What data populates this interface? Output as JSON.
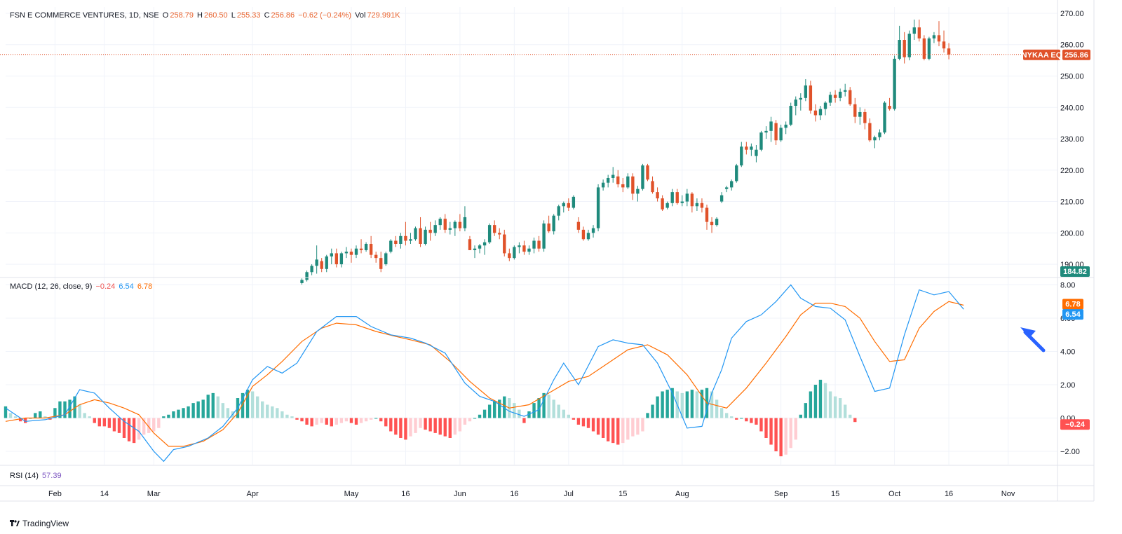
{
  "header": {
    "symbol": "FSN E COMMERCE VENTURES, 1D, NSE",
    "o_label": "O",
    "o": "258.79",
    "h_label": "H",
    "h": "260.50",
    "l_label": "L",
    "l": "255.33",
    "c_label": "C",
    "c": "256.86",
    "change": "−0.62 (−0.24%)",
    "vol_label": "Vol",
    "vol": "729.991K"
  },
  "macd_legend": {
    "label": "MACD (12, 26, close, 9)",
    "hist": "−0.24",
    "macd": "6.54",
    "signal": "6.78"
  },
  "rsi_legend": {
    "label": "RSI (14)",
    "value": "57.39"
  },
  "price_tag": {
    "ticker": "NYKAA EQ",
    "value": "256.86"
  },
  "low_tag": "184.82",
  "footer": {
    "brand": "TradingView"
  },
  "colors": {
    "up": "#26a69a",
    "down": "#ef5350",
    "up_dark": "#1f8a7c",
    "down_dark": "#e0522a",
    "macd": "#2196f3",
    "signal": "#ff6d00",
    "hist_up_strong": "#26a69a",
    "hist_up_weak": "#b2dfdb",
    "hist_dn_strong": "#ff5252",
    "hist_dn_weak": "#ffcdd2",
    "arrow": "#2962ff",
    "rsi": "#7e57c2"
  },
  "chart_data": {
    "type": "candlestick",
    "price_axis": {
      "ylim": [
        186,
        272
      ],
      "ticks": [
        190,
        200,
        210,
        220,
        230,
        240,
        250,
        260,
        270
      ],
      "tick_labels": [
        "190.00",
        "200.00",
        "210.00",
        "220.00",
        "230.00",
        "240.00",
        "250.00",
        "260.00",
        "270.00"
      ]
    },
    "macd_axis": {
      "ylim": [
        -2.8,
        8.4
      ],
      "ticks": [
        -2,
        0,
        2,
        4,
        6,
        8
      ],
      "tick_labels": [
        "−2.00",
        "0.00",
        "2.00",
        "4.00",
        "6.00",
        "8.00"
      ]
    },
    "x_axis": {
      "ticks": [
        {
          "label": "Feb",
          "day": 0
        },
        {
          "label": "14",
          "day": 10
        },
        {
          "label": "Mar",
          "day": 20
        },
        {
          "label": "Apr",
          "day": 40
        },
        {
          "label": "May",
          "day": 60
        },
        {
          "label": "16",
          "day": 71
        },
        {
          "label": "Jun",
          "day": 82
        },
        {
          "label": "16",
          "day": 93
        },
        {
          "label": "Jul",
          "day": 104
        },
        {
          "label": "15",
          "day": 115
        },
        {
          "label": "Aug",
          "day": 127
        },
        {
          "label": "Sep",
          "day": 147
        },
        {
          "label": "15",
          "day": 158
        },
        {
          "label": "Oct",
          "day": 170
        },
        {
          "label": "16",
          "day": 181
        },
        {
          "label": "Nov",
          "day": 193
        }
      ],
      "day_range": [
        -10,
        203
      ]
    },
    "candles_start_day": 50,
    "candles": [
      [
        184,
        185.5,
        183.5,
        185
      ],
      [
        185,
        188,
        184.5,
        187.5
      ],
      [
        187.5,
        190,
        186.5,
        189.5
      ],
      [
        189.5,
        196,
        187,
        191.5
      ],
      [
        191,
        192,
        187.5,
        188.5
      ],
      [
        188.5,
        193,
        187.5,
        192.5
      ],
      [
        192.5,
        195,
        190,
        193.5
      ],
      [
        193.5,
        195,
        189,
        190
      ],
      [
        190,
        194,
        189,
        193.5
      ],
      [
        193.5,
        195.5,
        192,
        194
      ],
      [
        194,
        195,
        190.5,
        193
      ],
      [
        193,
        196,
        192,
        195
      ],
      [
        195,
        198,
        193.5,
        194.5
      ],
      [
        194.5,
        197,
        194,
        196.5
      ],
      [
        196.5,
        199,
        192,
        193
      ],
      [
        193,
        194,
        190.5,
        192
      ],
      [
        192,
        194,
        187.5,
        188.5
      ],
      [
        190,
        194,
        189.5,
        193.5
      ],
      [
        194,
        198,
        193.5,
        197.5
      ],
      [
        197.5,
        199,
        195.5,
        196.5
      ],
      [
        196.5,
        200,
        195,
        199
      ],
      [
        199,
        203.5,
        196,
        197.5
      ],
      [
        197.5,
        200,
        196.5,
        198
      ],
      [
        198,
        202,
        197.5,
        201.5
      ],
      [
        201.5,
        205,
        195.5,
        196.5
      ],
      [
        196.5,
        202,
        196,
        201
      ],
      [
        201,
        203.5,
        197.5,
        200
      ],
      [
        200,
        204,
        199,
        202.5
      ],
      [
        202.5,
        205,
        201,
        204.5
      ],
      [
        204.5,
        206,
        200,
        201
      ],
      [
        201,
        203.5,
        199.5,
        201.5
      ],
      [
        201.5,
        204,
        199,
        203.5
      ],
      [
        203.5,
        206,
        200.5,
        201.5
      ],
      [
        201.5,
        208.5,
        200.5,
        205
      ],
      [
        198,
        199,
        194.5,
        194.5
      ],
      [
        194.5,
        196,
        192,
        195
      ],
      [
        195,
        196.5,
        193.5,
        196
      ],
      [
        196,
        198,
        193,
        197
      ],
      [
        197,
        203,
        196.5,
        202.5
      ],
      [
        202.5,
        204,
        199,
        200
      ],
      [
        200,
        201.5,
        198,
        199.5
      ],
      [
        199.5,
        201,
        192.5,
        193.5
      ],
      [
        193.5,
        195,
        191,
        192
      ],
      [
        192,
        196,
        191.5,
        195.5
      ],
      [
        195.5,
        197,
        193.5,
        196
      ],
      [
        196,
        197.5,
        193,
        194
      ],
      [
        194,
        196,
        193,
        195
      ],
      [
        195,
        198.5,
        193.5,
        197.5
      ],
      [
        197.5,
        199,
        194,
        195
      ],
      [
        195,
        204,
        194,
        203
      ],
      [
        203,
        205.5,
        200,
        200.5
      ],
      [
        200.5,
        206,
        199.5,
        205.5
      ],
      [
        205.5,
        209,
        204,
        208.5
      ],
      [
        208.5,
        210,
        206.5,
        209.5
      ],
      [
        209.5,
        211,
        207,
        208
      ],
      [
        208,
        212,
        207.5,
        211.5
      ],
      [
        203.5,
        205,
        200,
        201
      ],
      [
        201,
        202,
        197.5,
        198
      ],
      [
        198,
        201,
        197.5,
        200
      ],
      [
        200,
        202.5,
        198.5,
        201.5
      ],
      [
        201.5,
        215.5,
        200.5,
        214.5
      ],
      [
        214.5,
        217,
        213.5,
        216
      ],
      [
        216,
        218.5,
        214.5,
        217.5
      ],
      [
        217.5,
        221,
        216,
        218.5
      ],
      [
        218,
        220,
        214.5,
        215.5
      ],
      [
        215.5,
        217.5,
        213,
        214.5
      ],
      [
        214.5,
        219,
        214,
        218
      ],
      [
        218,
        219,
        210.5,
        212.5
      ],
      [
        212.5,
        215,
        210,
        214
      ],
      [
        214,
        222,
        213.5,
        221.5
      ],
      [
        221.5,
        222,
        216.5,
        217
      ],
      [
        216.5,
        218,
        212.5,
        213
      ],
      [
        213,
        214.5,
        210,
        211
      ],
      [
        211,
        212,
        207,
        207.5
      ],
      [
        208,
        210,
        207.5,
        209.5
      ],
      [
        209.5,
        214,
        208.5,
        213
      ],
      [
        213,
        214,
        209,
        209.5
      ],
      [
        209.5,
        212,
        208.5,
        210
      ],
      [
        210,
        214,
        208.5,
        212.5
      ],
      [
        212.5,
        213,
        206.5,
        208.5
      ],
      [
        208.5,
        211,
        207,
        209.5
      ],
      [
        209.5,
        211,
        206.5,
        208
      ],
      [
        208,
        209,
        201,
        203.5
      ],
      [
        203.5,
        205,
        200,
        202.5
      ],
      [
        202.5,
        205,
        202,
        204.5
      ],
      [
        210,
        213,
        209.5,
        212
      ],
      [
        214,
        215,
        213,
        214.5
      ],
      [
        214.5,
        217,
        213.5,
        216.5
      ],
      [
        216.5,
        222,
        216,
        221.5
      ],
      [
        221.5,
        229,
        221,
        227.5
      ],
      [
        227.5,
        229,
        225,
        226.5
      ],
      [
        226.5,
        228.5,
        224.5,
        227.5
      ],
      [
        224.5,
        228,
        222.5,
        226.5
      ],
      [
        226.5,
        232.5,
        226,
        232
      ],
      [
        232,
        234,
        230,
        232.5
      ],
      [
        232.5,
        237,
        229,
        235.5
      ],
      [
        235,
        236,
        228,
        229.5
      ],
      [
        229.5,
        234.5,
        229,
        233.5
      ],
      [
        233.5,
        235.5,
        231.5,
        234.5
      ],
      [
        234.5,
        241.5,
        234,
        240.5
      ],
      [
        240.5,
        243.5,
        237.5,
        242.5
      ],
      [
        242.5,
        244.5,
        239,
        243
      ],
      [
        243,
        249,
        242,
        247
      ],
      [
        247,
        248.5,
        238,
        239
      ],
      [
        239,
        241,
        235.5,
        237.5
      ],
      [
        237.5,
        240.5,
        236,
        239.5
      ],
      [
        239.5,
        242,
        237.5,
        241.5
      ],
      [
        241.5,
        245,
        240.5,
        244
      ],
      [
        244,
        245.5,
        241.5,
        243
      ],
      [
        243,
        246,
        242,
        245
      ],
      [
        245,
        247.5,
        243.5,
        245.5
      ],
      [
        245.5,
        246.5,
        240.5,
        241
      ],
      [
        241,
        243,
        235,
        237
      ],
      [
        237,
        240,
        234.5,
        238.5
      ],
      [
        238.5,
        239.5,
        233,
        235
      ],
      [
        235,
        236.5,
        229,
        229.5
      ],
      [
        229.5,
        231,
        227,
        230.5
      ],
      [
        230.5,
        233,
        229.5,
        232
      ],
      [
        232,
        242,
        231.5,
        241.5
      ],
      [
        240.5,
        243,
        239,
        239.5
      ],
      [
        239.5,
        256.5,
        239,
        255.5
      ],
      [
        255.5,
        266,
        255,
        261.5
      ],
      [
        261.5,
        264,
        254,
        256
      ],
      [
        256,
        264.5,
        255,
        263.5
      ],
      [
        263.5,
        268,
        261.5,
        265.5
      ],
      [
        265.5,
        268,
        261,
        262
      ],
      [
        262,
        263,
        255,
        255.5
      ],
      [
        255.5,
        262.5,
        255,
        262
      ],
      [
        262,
        264,
        260.5,
        263
      ],
      [
        263,
        267.5,
        259.5,
        261
      ],
      [
        261,
        264.5,
        257.5,
        258.8
      ],
      [
        258.79,
        260.5,
        255.33,
        256.86
      ]
    ],
    "series": [
      {
        "name": "MACD",
        "x_days": [
          -10,
          -6,
          -2,
          2,
          5,
          8,
          11,
          14,
          17,
          20,
          22,
          24,
          27,
          31,
          34,
          37,
          40,
          43,
          46,
          49,
          53,
          57,
          61,
          64,
          68,
          72,
          75,
          79,
          83,
          86,
          89,
          92,
          95,
          98,
          101,
          103,
          106,
          110,
          113,
          116,
          119,
          122,
          125,
          128,
          131,
          133,
          135,
          137,
          140,
          143,
          146,
          149,
          151,
          154,
          157,
          160,
          163,
          166,
          169,
          172,
          175,
          178,
          181,
          184
        ],
        "values": [
          0.6,
          -0.2,
          -0.1,
          0.2,
          1.7,
          1.5,
          0.6,
          -0.2,
          -0.8,
          -2.0,
          -2.6,
          -1.9,
          -1.7,
          -1.2,
          -0.5,
          0.6,
          2.3,
          3.1,
          2.7,
          3.3,
          5.2,
          6.1,
          6.1,
          5.5,
          5.0,
          4.8,
          4.5,
          3.9,
          2.1,
          1.3,
          1.0,
          0.4,
          0.1,
          0.5,
          2.3,
          3.3,
          2.0,
          4.3,
          4.7,
          4.5,
          4.4,
          3.3,
          1.5,
          -0.6,
          -0.5,
          1.5,
          2.9,
          4.8,
          5.8,
          6.2,
          7.0,
          8.0,
          7.2,
          6.7,
          6.6,
          5.9,
          3.7,
          1.6,
          1.8,
          5.0,
          7.7,
          7.4,
          7.6,
          6.54
        ]
      },
      {
        "name": "Signal",
        "x_days": [
          -10,
          -6,
          -2,
          2,
          5,
          8,
          11,
          14,
          17,
          20,
          23,
          26,
          30,
          34,
          37,
          40,
          43,
          46,
          50,
          54,
          57,
          61,
          65,
          69,
          72,
          76,
          80,
          84,
          88,
          92,
          96,
          100,
          104,
          108,
          112,
          116,
          120,
          124,
          128,
          132,
          136,
          140,
          144,
          148,
          151,
          154,
          157,
          160,
          163,
          166,
          169,
          172,
          175,
          178,
          181,
          184
        ],
        "values": [
          -0.2,
          0.0,
          0.0,
          0.2,
          0.8,
          1.1,
          0.9,
          0.6,
          0.2,
          -0.9,
          -1.7,
          -1.7,
          -1.4,
          -0.7,
          0.3,
          1.9,
          2.6,
          3.4,
          4.6,
          5.4,
          5.7,
          5.6,
          5.2,
          4.9,
          4.7,
          4.4,
          3.4,
          2.2,
          1.2,
          0.6,
          0.8,
          1.5,
          2.2,
          2.5,
          3.3,
          4.1,
          4.4,
          3.8,
          2.6,
          0.9,
          0.6,
          1.8,
          3.3,
          4.9,
          6.2,
          6.9,
          6.9,
          6.7,
          6.0,
          4.6,
          3.4,
          3.5,
          5.4,
          6.4,
          7.0,
          6.78
        ]
      },
      {
        "name": "Histogram",
        "x_days_start": -10,
        "values": [
          0.7,
          0.3,
          0.1,
          -0.2,
          -0.3,
          0.0,
          0.3,
          0.4,
          0.1,
          -0.1,
          0.6,
          1.0,
          1.0,
          1.1,
          1.3,
          0.8,
          0.3,
          0.1,
          -0.3,
          -0.5,
          -0.5,
          -0.6,
          -0.8,
          -0.9,
          -1.2,
          -1.4,
          -1.5,
          -1.3,
          -1.0,
          -0.9,
          -0.8,
          -0.6,
          0.1,
          0.2,
          0.4,
          0.5,
          0.6,
          0.7,
          0.9,
          1.0,
          1.1,
          1.4,
          1.5,
          1.3,
          0.9,
          0.6,
          0.4,
          1.2,
          1.5,
          1.7,
          1.6,
          1.3,
          1.0,
          0.8,
          0.7,
          0.6,
          0.4,
          0.2,
          0.1,
          -0.1,
          -0.2,
          -0.4,
          -0.5,
          -0.4,
          -0.3,
          -0.4,
          -0.5,
          -0.4,
          -0.3,
          -0.2,
          -0.3,
          -0.4,
          -0.3,
          -0.2,
          -0.1,
          0.0,
          -0.2,
          -0.5,
          -0.8,
          -1.0,
          -1.2,
          -1.3,
          -1.1,
          -0.9,
          -0.6,
          -0.7,
          -0.8,
          -0.9,
          -1.0,
          -1.1,
          -1.2,
          -1.0,
          -0.8,
          -0.4,
          -0.2,
          0.0,
          0.2,
          0.5,
          0.8,
          1.0,
          1.1,
          1.3,
          1.2,
          0.9,
          0.5,
          -0.3,
          0.4,
          0.9,
          1.2,
          1.5,
          1.4,
          1.1,
          0.8,
          0.5,
          0.2,
          -0.1,
          -0.4,
          -0.5,
          -0.6,
          -0.8,
          -1.0,
          -1.2,
          -1.4,
          -1.5,
          -1.6,
          -1.5,
          -1.3,
          -1.1,
          -1.0,
          -0.8,
          0.3,
          0.8,
          1.3,
          1.6,
          1.7,
          1.8,
          1.6,
          1.5,
          1.6,
          1.7,
          1.6,
          1.7,
          1.8,
          1.6,
          1.1,
          0.6,
          0.3,
          0.1,
          -0.1,
          0.0,
          -0.2,
          -0.3,
          -0.4,
          -0.8,
          -1.2,
          -1.6,
          -2.0,
          -2.3,
          -2.2,
          -1.8,
          -1.3,
          0.2,
          0.9,
          1.6,
          2.0,
          2.3,
          2.1,
          1.6,
          1.3,
          1.2,
          0.8,
          0.2,
          -0.24
        ]
      }
    ]
  }
}
